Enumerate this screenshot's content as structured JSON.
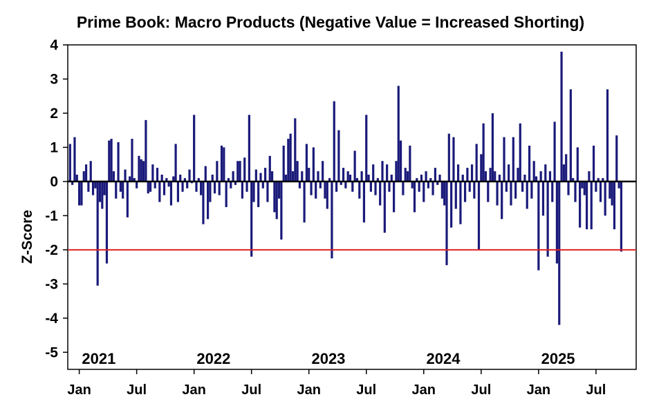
{
  "chart_data": {
    "type": "bar",
    "title": "Prime Book: Macro Products (Negative Value = Increased Shorting)",
    "xlabel": "",
    "ylabel": "Z-Score",
    "ylim": [
      -5.5,
      4
    ],
    "yticks": [
      4,
      3,
      2,
      1,
      0,
      -1,
      -2,
      -3,
      -4,
      -5
    ],
    "ytick_labels": [
      "4",
      "3",
      "2",
      "1",
      "0",
      "-1",
      "-2",
      "-3",
      "-4",
      "-5"
    ],
    "xlim": [
      2020.9,
      2025.85
    ],
    "xticks": [
      {
        "label": "Jan",
        "x": 2021.0
      },
      {
        "label": "Jul",
        "x": 2021.5
      },
      {
        "label": "Jan",
        "x": 2022.0
      },
      {
        "label": "Jul",
        "x": 2022.5
      },
      {
        "label": "Jan",
        "x": 2023.0
      },
      {
        "label": "Jul",
        "x": 2023.5
      },
      {
        "label": "Jan",
        "x": 2024.0
      },
      {
        "label": "Jul",
        "x": 2024.5
      },
      {
        "label": "Jan",
        "x": 2025.0
      },
      {
        "label": "Jul",
        "x": 2025.5
      }
    ],
    "year_labels": [
      {
        "label": "2021",
        "x": 2021.17
      },
      {
        "label": "2022",
        "x": 2022.17
      },
      {
        "label": "2023",
        "x": 2023.17
      },
      {
        "label": "2024",
        "x": 2024.17
      },
      {
        "label": "2025",
        "x": 2025.17
      }
    ],
    "reference_line": {
      "y": -2,
      "color": "#e02020"
    },
    "zero_line": {
      "y": 0,
      "color": "#000000"
    },
    "series": [
      {
        "name": "Macro Products Z-Score",
        "color": "#1a1a7a",
        "points": [
          [
            2020.92,
            1.1
          ],
          [
            2020.94,
            -0.1
          ],
          [
            2020.96,
            1.3
          ],
          [
            2020.98,
            0.2
          ],
          [
            2021.0,
            -0.7
          ],
          [
            2021.02,
            -0.7
          ],
          [
            2021.04,
            0.3
          ],
          [
            2021.06,
            0.5
          ],
          [
            2021.08,
            -0.3
          ],
          [
            2021.1,
            0.6
          ],
          [
            2021.12,
            -0.4
          ],
          [
            2021.14,
            -0.2
          ],
          [
            2021.16,
            -3.05
          ],
          [
            2021.18,
            -0.6
          ],
          [
            2021.2,
            -0.8
          ],
          [
            2021.22,
            -0.4
          ],
          [
            2021.24,
            -2.4
          ],
          [
            2021.26,
            1.2
          ],
          [
            2021.28,
            1.25
          ],
          [
            2021.3,
            0.3
          ],
          [
            2021.32,
            -0.5
          ],
          [
            2021.34,
            1.15
          ],
          [
            2021.36,
            -0.3
          ],
          [
            2021.38,
            -0.5
          ],
          [
            2021.4,
            0.35
          ],
          [
            2021.42,
            -1.05
          ],
          [
            2021.44,
            0.15
          ],
          [
            2021.46,
            1.25
          ],
          [
            2021.48,
            0.1
          ],
          [
            2021.5,
            -0.2
          ],
          [
            2021.52,
            0.75
          ],
          [
            2021.54,
            0.65
          ],
          [
            2021.56,
            0.6
          ],
          [
            2021.58,
            1.8
          ],
          [
            2021.6,
            -0.35
          ],
          [
            2021.62,
            -0.3
          ],
          [
            2021.64,
            0.5
          ],
          [
            2021.66,
            -0.2
          ],
          [
            2021.68,
            0.4
          ],
          [
            2021.7,
            -0.6
          ],
          [
            2021.72,
            0.2
          ],
          [
            2021.74,
            -0.4
          ],
          [
            2021.76,
            0.1
          ],
          [
            2021.78,
            -0.15
          ],
          [
            2021.8,
            -0.7
          ],
          [
            2021.82,
            0.15
          ],
          [
            2021.84,
            1.1
          ],
          [
            2021.86,
            -0.6
          ],
          [
            2021.88,
            0.2
          ],
          [
            2021.9,
            -0.3
          ],
          [
            2021.92,
            0.1
          ],
          [
            2021.94,
            -0.2
          ],
          [
            2021.96,
            0.35
          ],
          [
            2021.98,
            -0.05
          ],
          [
            2022.0,
            1.95
          ],
          [
            2022.02,
            -0.3
          ],
          [
            2022.04,
            0.1
          ],
          [
            2022.06,
            -0.4
          ],
          [
            2022.08,
            -1.25
          ],
          [
            2022.1,
            0.45
          ],
          [
            2022.12,
            -1.1
          ],
          [
            2022.14,
            -0.6
          ],
          [
            2022.16,
            0.2
          ],
          [
            2022.18,
            -0.35
          ],
          [
            2022.2,
            0.6
          ],
          [
            2022.22,
            -0.4
          ],
          [
            2022.24,
            1.05
          ],
          [
            2022.26,
            1.0
          ],
          [
            2022.28,
            -0.75
          ],
          [
            2022.3,
            0.1
          ],
          [
            2022.32,
            -0.2
          ],
          [
            2022.34,
            0.3
          ],
          [
            2022.36,
            -0.1
          ],
          [
            2022.38,
            0.6
          ],
          [
            2022.4,
            0.6
          ],
          [
            2022.42,
            -0.5
          ],
          [
            2022.44,
            0.7
          ],
          [
            2022.46,
            -0.3
          ],
          [
            2022.48,
            1.95
          ],
          [
            2022.5,
            -2.2
          ],
          [
            2022.52,
            -0.6
          ],
          [
            2022.54,
            0.35
          ],
          [
            2022.56,
            -0.75
          ],
          [
            2022.58,
            0.25
          ],
          [
            2022.6,
            -0.2
          ],
          [
            2022.62,
            0.4
          ],
          [
            2022.64,
            -0.6
          ],
          [
            2022.66,
            0.75
          ],
          [
            2022.68,
            0.3
          ],
          [
            2022.7,
            -0.9
          ],
          [
            2022.72,
            -1.1
          ],
          [
            2022.74,
            -0.5
          ],
          [
            2022.76,
            -1.7
          ],
          [
            2022.78,
            1.05
          ],
          [
            2022.8,
            0.2
          ],
          [
            2022.82,
            1.25
          ],
          [
            2022.84,
            1.4
          ],
          [
            2022.86,
            0.3
          ],
          [
            2022.88,
            1.85
          ],
          [
            2022.9,
            0.6
          ],
          [
            2022.92,
            -0.2
          ],
          [
            2022.94,
            0.3
          ],
          [
            2022.96,
            -1.2
          ],
          [
            2022.98,
            1.1
          ],
          [
            2023.0,
            0.4
          ],
          [
            2023.02,
            -0.4
          ],
          [
            2023.04,
            1.0
          ],
          [
            2023.06,
            -0.5
          ],
          [
            2023.08,
            0.3
          ],
          [
            2023.1,
            -0.2
          ],
          [
            2023.12,
            0.6
          ],
          [
            2023.14,
            -0.5
          ],
          [
            2023.16,
            -0.8
          ],
          [
            2023.18,
            0.1
          ],
          [
            2023.2,
            -2.25
          ],
          [
            2023.22,
            2.35
          ],
          [
            2023.24,
            -0.3
          ],
          [
            2023.26,
            1.5
          ],
          [
            2023.28,
            -0.1
          ],
          [
            2023.3,
            0.4
          ],
          [
            2023.32,
            -0.2
          ],
          [
            2023.34,
            0.3
          ],
          [
            2023.36,
            0.2
          ],
          [
            2023.38,
            -0.3
          ],
          [
            2023.4,
            0.9
          ],
          [
            2023.42,
            0.1
          ],
          [
            2023.44,
            -0.5
          ],
          [
            2023.46,
            0.3
          ],
          [
            2023.48,
            -1.2
          ],
          [
            2023.5,
            1.95
          ],
          [
            2023.52,
            0.2
          ],
          [
            2023.54,
            -0.3
          ],
          [
            2023.56,
            0.5
          ],
          [
            2023.58,
            -0.4
          ],
          [
            2023.6,
            0.1
          ],
          [
            2023.62,
            -0.7
          ],
          [
            2023.64,
            0.6
          ],
          [
            2023.66,
            -1.5
          ],
          [
            2023.68,
            0.5
          ],
          [
            2023.7,
            -0.3
          ],
          [
            2023.72,
            0.2
          ],
          [
            2023.74,
            -0.9
          ],
          [
            2023.76,
            0.6
          ],
          [
            2023.78,
            2.8
          ],
          [
            2023.8,
            1.2
          ],
          [
            2023.82,
            -0.4
          ],
          [
            2023.84,
            0.4
          ],
          [
            2023.86,
            0.3
          ],
          [
            2023.88,
            1.05
          ],
          [
            2023.9,
            -0.2
          ],
          [
            2023.92,
            -0.9
          ],
          [
            2023.94,
            0.1
          ],
          [
            2023.96,
            -0.3
          ],
          [
            2023.98,
            0.2
          ],
          [
            2024.0,
            -0.6
          ],
          [
            2024.02,
            0.3
          ],
          [
            2024.04,
            -0.2
          ],
          [
            2024.06,
            0.1
          ],
          [
            2024.08,
            -0.4
          ],
          [
            2024.1,
            0.4
          ],
          [
            2024.12,
            -0.1
          ],
          [
            2024.14,
            0.2
          ],
          [
            2024.16,
            -0.5
          ],
          [
            2024.18,
            -0.7
          ],
          [
            2024.2,
            -2.45
          ],
          [
            2024.22,
            1.4
          ],
          [
            2024.24,
            -1.35
          ],
          [
            2024.26,
            1.3
          ],
          [
            2024.28,
            -0.8
          ],
          [
            2024.3,
            0.5
          ],
          [
            2024.32,
            -1.25
          ],
          [
            2024.34,
            0.2
          ],
          [
            2024.36,
            -0.6
          ],
          [
            2024.38,
            0.4
          ],
          [
            2024.4,
            -0.3
          ],
          [
            2024.42,
            0.5
          ],
          [
            2024.44,
            -0.5
          ],
          [
            2024.46,
            1.1
          ],
          [
            2024.48,
            -2.0
          ],
          [
            2024.5,
            0.8
          ],
          [
            2024.52,
            1.7
          ],
          [
            2024.54,
            0.3
          ],
          [
            2024.56,
            -0.6
          ],
          [
            2024.58,
            0.4
          ],
          [
            2024.6,
            2.0
          ],
          [
            2024.62,
            0.3
          ],
          [
            2024.64,
            -0.7
          ],
          [
            2024.66,
            0.2
          ],
          [
            2024.68,
            -1.1
          ],
          [
            2024.7,
            1.3
          ],
          [
            2024.72,
            -0.3
          ],
          [
            2024.74,
            0.5
          ],
          [
            2024.76,
            -0.7
          ],
          [
            2024.78,
            1.3
          ],
          [
            2024.8,
            -0.5
          ],
          [
            2024.82,
            0.4
          ],
          [
            2024.84,
            1.7
          ],
          [
            2024.86,
            -0.3
          ],
          [
            2024.88,
            0.2
          ],
          [
            2024.9,
            -0.8
          ],
          [
            2024.92,
            1.05
          ],
          [
            2024.94,
            -0.5
          ],
          [
            2024.96,
            0.6
          ],
          [
            2024.98,
            0.15
          ],
          [
            2025.0,
            -2.6
          ],
          [
            2025.02,
            0.3
          ],
          [
            2025.04,
            -1.0
          ],
          [
            2025.06,
            0.5
          ],
          [
            2025.08,
            -2.2
          ],
          [
            2025.1,
            0.3
          ],
          [
            2025.12,
            -0.6
          ],
          [
            2025.14,
            1.75
          ],
          [
            2025.16,
            -2.4
          ],
          [
            2025.18,
            -4.2
          ],
          [
            2025.2,
            3.8
          ],
          [
            2025.22,
            0.5
          ],
          [
            2025.24,
            0.8
          ],
          [
            2025.26,
            -0.4
          ],
          [
            2025.28,
            2.7
          ],
          [
            2025.3,
            0.1
          ],
          [
            2025.32,
            -0.6
          ],
          [
            2025.34,
            1.0
          ],
          [
            2025.36,
            -1.35
          ],
          [
            2025.38,
            -0.2
          ],
          [
            2025.4,
            -0.4
          ],
          [
            2025.42,
            -1.4
          ],
          [
            2025.44,
            0.3
          ],
          [
            2025.46,
            -1.4
          ],
          [
            2025.48,
            1.05
          ],
          [
            2025.5,
            -0.3
          ],
          [
            2025.52,
            0.1
          ],
          [
            2025.54,
            -0.6
          ],
          [
            2025.56,
            0.1
          ],
          [
            2025.58,
            -1.0
          ],
          [
            2025.6,
            2.7
          ],
          [
            2025.62,
            -0.5
          ],
          [
            2025.64,
            -0.7
          ],
          [
            2025.66,
            -1.4
          ],
          [
            2025.68,
            1.35
          ],
          [
            2025.7,
            -0.2
          ],
          [
            2025.72,
            -2.05
          ]
        ]
      }
    ]
  }
}
